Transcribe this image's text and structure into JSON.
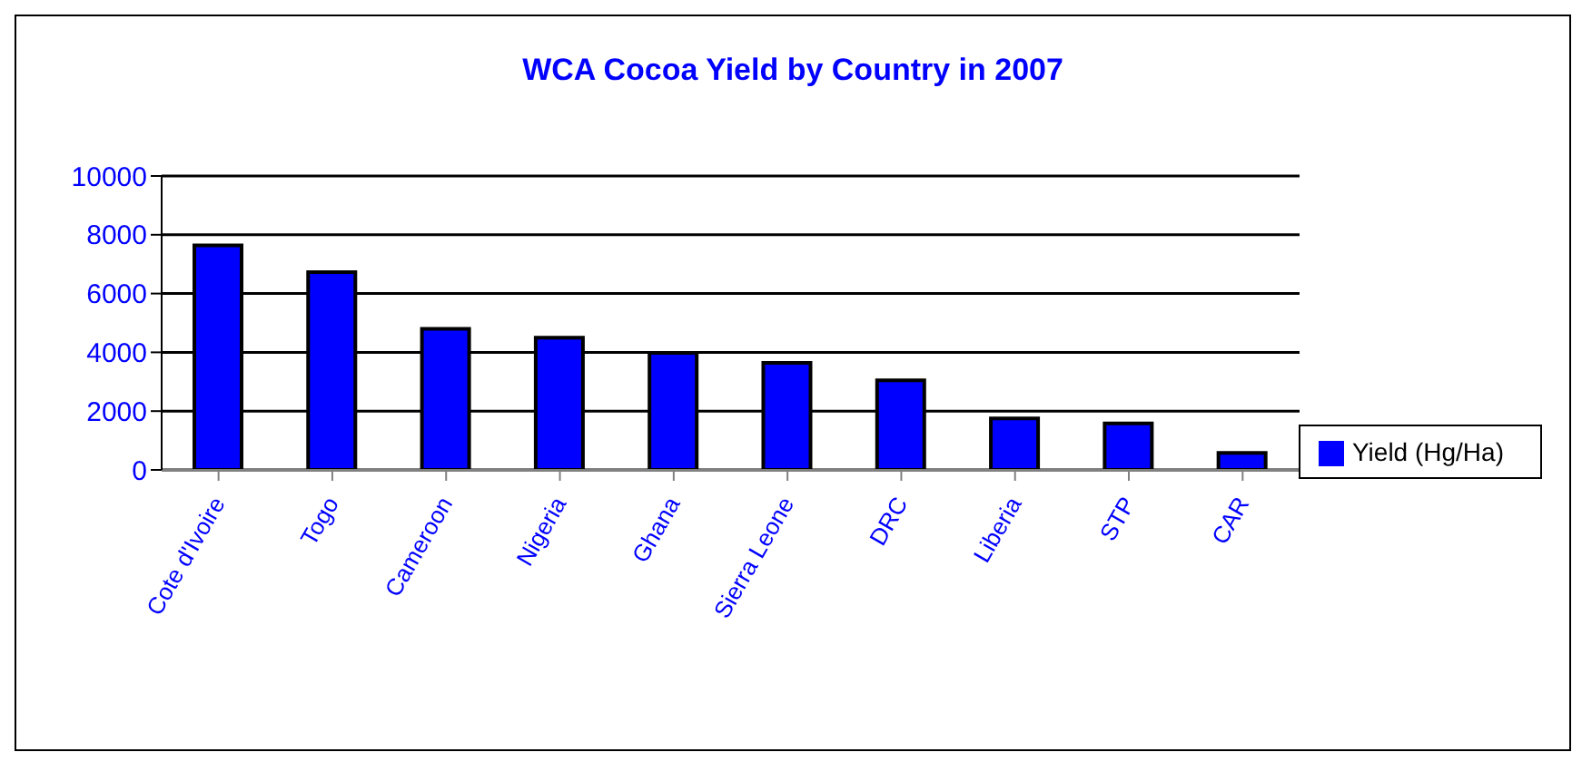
{
  "chart_data": {
    "type": "bar",
    "title": "WCA Cocoa Yield by Country in 2007",
    "categories": [
      "Cote d'Ivoire",
      "Togo",
      "Cameroon",
      "Nigeria",
      "Ghana",
      "Sierra Leone",
      "DRC",
      "Liberia",
      "STP",
      "CAR"
    ],
    "series": [
      {
        "name": "Yield (Hg/Ha)",
        "color": "#0000ff",
        "values": [
          7640,
          6730,
          4800,
          4500,
          3980,
          3640,
          3050,
          1750,
          1580,
          580
        ]
      }
    ],
    "ylim": [
      0,
      10000
    ],
    "yticks": [
      0,
      2000,
      4000,
      6000,
      8000,
      10000
    ],
    "grid": "y",
    "legend": "right"
  }
}
